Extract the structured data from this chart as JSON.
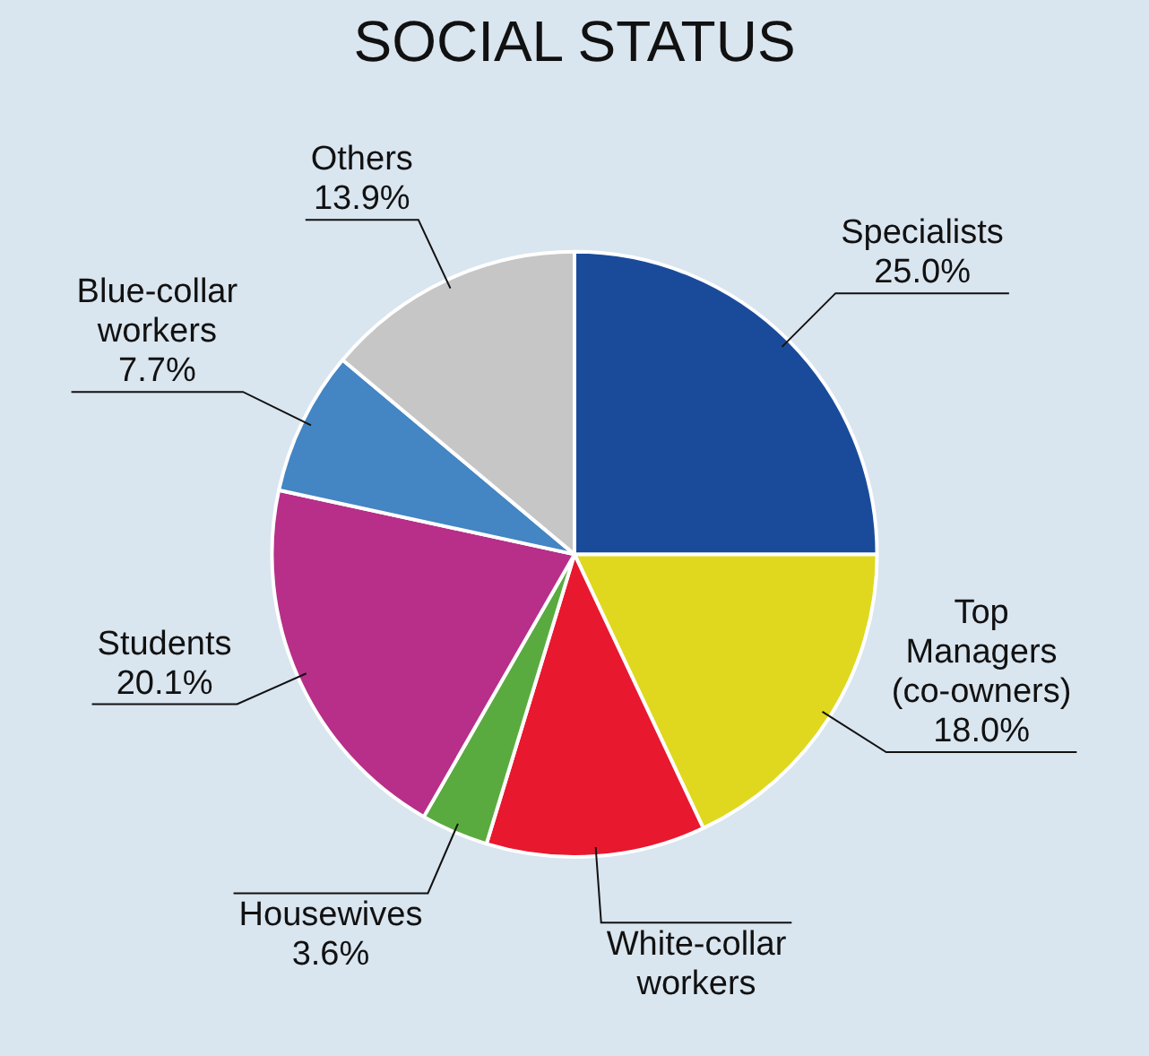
{
  "chart_data": {
    "type": "pie",
    "title": "SOCIAL STATUS",
    "categories": [
      "Specialists",
      "Top Managers (co-owners)",
      "White-collar workers",
      "Housewives",
      "Students",
      "Blue-collar workers",
      "Others"
    ],
    "values": [
      25.0,
      18.0,
      11.7,
      3.6,
      20.1,
      7.7,
      13.9
    ],
    "value_labels": [
      "25.0%",
      "18.0%",
      null,
      "3.6%",
      "20.1%",
      "7.7%",
      "13.9%"
    ],
    "colors": [
      "#1a4b9b",
      "#dfd81e",
      "#e8182f",
      "#5aab3f",
      "#b72f89",
      "#4485c3",
      "#c6c6c6"
    ],
    "legend": false
  }
}
